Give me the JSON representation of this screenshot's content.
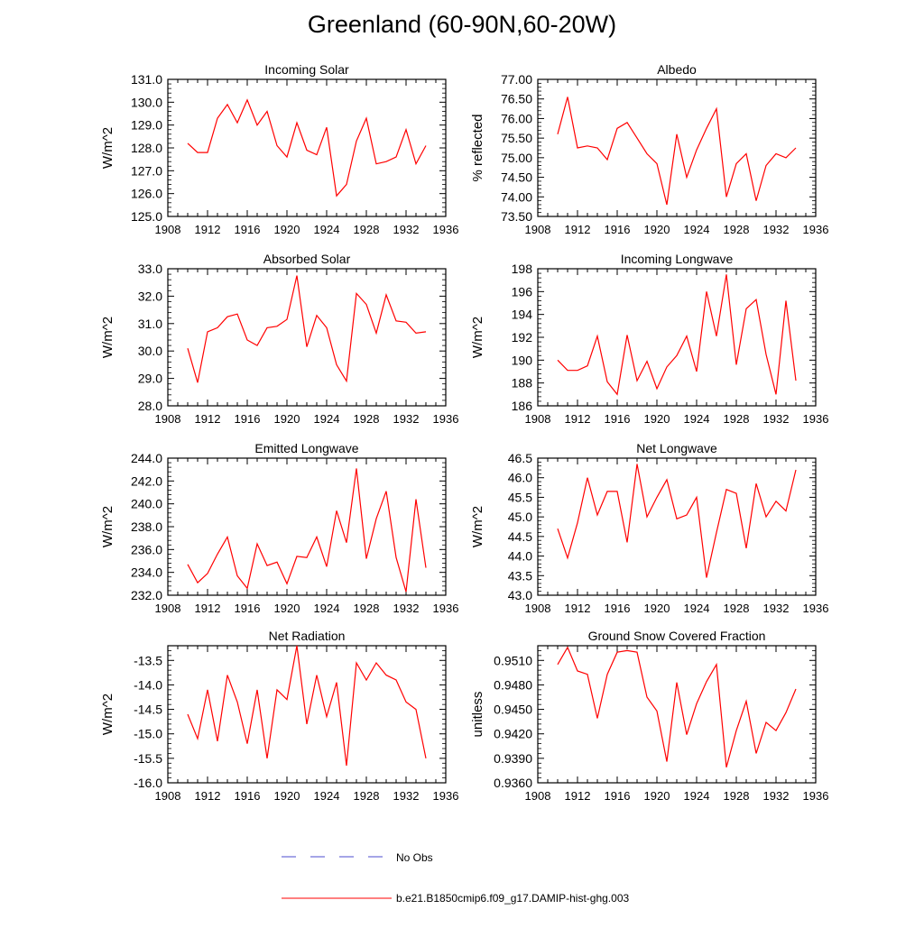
{
  "figure": {
    "title": "Greenland (60-90N,60-20W)"
  },
  "legend": {
    "obs_label": "No Obs",
    "obs_color": "#4b4bcf",
    "model_label": "b.e21.B1850cmip6.f09_g17.DAMIP-hist-ghg.003",
    "model_color": "#ff0000"
  },
  "chart_data": [
    {
      "type": "line",
      "title": "Incoming Solar",
      "ylabel": "W/m^2",
      "xlim": [
        1908,
        1936
      ],
      "ylim": [
        125.0,
        131.0
      ],
      "xticks": [
        1908,
        1912,
        1916,
        1920,
        1924,
        1928,
        1932,
        1936
      ],
      "yticks": [
        "125.0",
        "126.0",
        "127.0",
        "128.0",
        "129.0",
        "130.0",
        "131.0"
      ],
      "x": [
        1910,
        1911,
        1912,
        1913,
        1914,
        1915,
        1916,
        1917,
        1918,
        1919,
        1920,
        1921,
        1922,
        1923,
        1924,
        1925,
        1926,
        1927,
        1928,
        1929,
        1930,
        1931,
        1932,
        1933,
        1934
      ],
      "series": [
        {
          "name": "b.e21.B1850cmip6.f09_g17.DAMIP-hist-ghg.003",
          "values": [
            128.2,
            127.8,
            127.8,
            129.3,
            129.9,
            129.1,
            130.1,
            129.0,
            129.6,
            128.1,
            127.6,
            129.1,
            127.9,
            127.7,
            128.9,
            125.9,
            126.4,
            128.3,
            129.3,
            127.3,
            127.4,
            127.6,
            128.8,
            127.3,
            128.1
          ]
        }
      ]
    },
    {
      "type": "line",
      "title": "Albedo",
      "ylabel": "% reflected",
      "xlim": [
        1908,
        1936
      ],
      "ylim": [
        73.5,
        77.0
      ],
      "xticks": [
        1908,
        1912,
        1916,
        1920,
        1924,
        1928,
        1932,
        1936
      ],
      "yticks": [
        "73.50",
        "74.00",
        "74.50",
        "75.00",
        "75.50",
        "76.00",
        "76.50",
        "77.00"
      ],
      "x": [
        1910,
        1911,
        1912,
        1913,
        1914,
        1915,
        1916,
        1917,
        1918,
        1919,
        1920,
        1921,
        1922,
        1923,
        1924,
        1925,
        1926,
        1927,
        1928,
        1929,
        1930,
        1931,
        1932,
        1933,
        1934
      ],
      "series": [
        {
          "name": "b.e21.B1850cmip6.f09_g17.DAMIP-hist-ghg.003",
          "values": [
            75.6,
            76.55,
            75.25,
            75.3,
            75.25,
            74.95,
            75.75,
            75.9,
            75.5,
            75.1,
            74.85,
            73.8,
            75.6,
            74.5,
            75.2,
            75.75,
            76.25,
            74.0,
            74.85,
            75.1,
            73.9,
            74.8,
            75.1,
            75.0,
            75.25
          ]
        }
      ]
    },
    {
      "type": "line",
      "title": "Absorbed Solar",
      "ylabel": "W/m^2",
      "xlim": [
        1908,
        1936
      ],
      "ylim": [
        28.0,
        33.0
      ],
      "xticks": [
        1908,
        1912,
        1916,
        1920,
        1924,
        1928,
        1932,
        1936
      ],
      "yticks": [
        "28.0",
        "29.0",
        "30.0",
        "31.0",
        "32.0",
        "33.0"
      ],
      "x": [
        1910,
        1911,
        1912,
        1913,
        1914,
        1915,
        1916,
        1917,
        1918,
        1919,
        1920,
        1921,
        1922,
        1923,
        1924,
        1925,
        1926,
        1927,
        1928,
        1929,
        1930,
        1931,
        1932,
        1933,
        1934
      ],
      "series": [
        {
          "name": "b.e21.B1850cmip6.f09_g17.DAMIP-hist-ghg.003",
          "values": [
            30.1,
            28.85,
            30.7,
            30.85,
            31.25,
            31.35,
            30.4,
            30.2,
            30.85,
            30.9,
            31.15,
            32.75,
            30.15,
            31.3,
            30.85,
            29.5,
            28.9,
            32.1,
            31.7,
            30.65,
            32.05,
            31.1,
            31.05,
            30.65,
            30.7
          ]
        }
      ]
    },
    {
      "type": "line",
      "title": "Incoming Longwave",
      "ylabel": "W/m^2",
      "xlim": [
        1908,
        1936
      ],
      "ylim": [
        186,
        198
      ],
      "xticks": [
        1908,
        1912,
        1916,
        1920,
        1924,
        1928,
        1932,
        1936
      ],
      "yticks": [
        "186",
        "188",
        "190",
        "192",
        "194",
        "196",
        "198"
      ],
      "x": [
        1910,
        1911,
        1912,
        1913,
        1914,
        1915,
        1916,
        1917,
        1918,
        1919,
        1920,
        1921,
        1922,
        1923,
        1924,
        1925,
        1926,
        1927,
        1928,
        1929,
        1930,
        1931,
        1932,
        1933,
        1934
      ],
      "series": [
        {
          "name": "b.e21.B1850cmip6.f09_g17.DAMIP-hist-ghg.003",
          "values": [
            190.0,
            189.1,
            189.1,
            189.5,
            192.1,
            188.1,
            187.0,
            192.2,
            188.2,
            189.9,
            187.5,
            189.4,
            190.4,
            192.1,
            189.0,
            196.0,
            192.1,
            197.5,
            189.6,
            194.5,
            195.3,
            190.5,
            187.0,
            195.2,
            188.2
          ]
        }
      ]
    },
    {
      "type": "line",
      "title": "Emitted Longwave",
      "ylabel": "W/m^2",
      "xlim": [
        1908,
        1936
      ],
      "ylim": [
        232.0,
        244.0
      ],
      "xticks": [
        1908,
        1912,
        1916,
        1920,
        1924,
        1928,
        1932,
        1936
      ],
      "yticks": [
        "232.0",
        "234.0",
        "236.0",
        "238.0",
        "240.0",
        "242.0",
        "244.0"
      ],
      "x": [
        1910,
        1911,
        1912,
        1913,
        1914,
        1915,
        1916,
        1917,
        1918,
        1919,
        1920,
        1921,
        1922,
        1923,
        1924,
        1925,
        1926,
        1927,
        1928,
        1929,
        1930,
        1931,
        1932,
        1933,
        1934
      ],
      "series": [
        {
          "name": "b.e21.B1850cmip6.f09_g17.DAMIP-hist-ghg.003",
          "values": [
            234.7,
            233.1,
            233.9,
            235.6,
            237.1,
            233.7,
            232.6,
            236.5,
            234.6,
            234.9,
            233.0,
            235.4,
            235.3,
            237.1,
            234.5,
            239.4,
            236.6,
            243.1,
            235.2,
            238.7,
            241.1,
            235.3,
            232.3,
            240.4,
            234.4
          ]
        }
      ]
    },
    {
      "type": "line",
      "title": "Net Longwave",
      "ylabel": "W/m^2",
      "xlim": [
        1908,
        1936
      ],
      "ylim": [
        43.0,
        46.5
      ],
      "xticks": [
        1908,
        1912,
        1916,
        1920,
        1924,
        1928,
        1932,
        1936
      ],
      "yticks": [
        "43.0",
        "43.5",
        "44.0",
        "44.5",
        "45.0",
        "45.5",
        "46.0",
        "46.5"
      ],
      "x": [
        1910,
        1911,
        1912,
        1913,
        1914,
        1915,
        1916,
        1917,
        1918,
        1919,
        1920,
        1921,
        1922,
        1923,
        1924,
        1925,
        1926,
        1927,
        1928,
        1929,
        1930,
        1931,
        1932,
        1933,
        1934
      ],
      "series": [
        {
          "name": "b.e21.B1850cmip6.f09_g17.DAMIP-hist-ghg.003",
          "values": [
            44.7,
            43.95,
            44.85,
            46.0,
            45.05,
            45.65,
            45.65,
            44.35,
            46.35,
            45.0,
            45.5,
            45.95,
            44.95,
            45.05,
            45.5,
            43.45,
            44.6,
            45.7,
            45.6,
            44.2,
            45.85,
            45.0,
            45.4,
            45.15,
            46.2
          ]
        }
      ]
    },
    {
      "type": "line",
      "title": "Net Radiation",
      "ylabel": "W/m^2",
      "xlim": [
        1908,
        1936
      ],
      "ylim": [
        -16.0,
        -13.2
      ],
      "xticks": [
        1908,
        1912,
        1916,
        1920,
        1924,
        1928,
        1932,
        1936
      ],
      "yticks": [
        "-16.0",
        "-15.5",
        "-15.0",
        "-14.5",
        "-14.0",
        "-13.5"
      ],
      "ytick_values": [
        -16.0,
        -15.5,
        -15.0,
        -14.5,
        -14.0,
        -13.5
      ],
      "x": [
        1910,
        1911,
        1912,
        1913,
        1914,
        1915,
        1916,
        1917,
        1918,
        1919,
        1920,
        1921,
        1922,
        1923,
        1924,
        1925,
        1926,
        1927,
        1928,
        1929,
        1930,
        1931,
        1932,
        1933,
        1934
      ],
      "series": [
        {
          "name": "b.e21.B1850cmip6.f09_g17.DAMIP-hist-ghg.003",
          "values": [
            -14.6,
            -15.1,
            -14.1,
            -15.15,
            -13.8,
            -14.35,
            -15.2,
            -14.1,
            -15.5,
            -14.1,
            -14.3,
            -13.2,
            -14.8,
            -13.8,
            -14.65,
            -13.95,
            -15.65,
            -13.55,
            -13.9,
            -13.55,
            -13.8,
            -13.9,
            -14.35,
            -14.5,
            -15.5
          ]
        }
      ]
    },
    {
      "type": "line",
      "title": "Ground Snow Covered Fraction",
      "ylabel": "unitless",
      "xlim": [
        1908,
        1936
      ],
      "ylim": [
        0.936,
        0.9528
      ],
      "xticks": [
        1908,
        1912,
        1916,
        1920,
        1924,
        1928,
        1932,
        1936
      ],
      "yticks": [
        "0.9360",
        "0.9390",
        "0.9420",
        "0.9450",
        "0.9480",
        "0.9510"
      ],
      "ytick_values": [
        0.936,
        0.939,
        0.942,
        0.945,
        0.948,
        0.951
      ],
      "x": [
        1910,
        1911,
        1912,
        1913,
        1914,
        1915,
        1916,
        1917,
        1918,
        1919,
        1920,
        1921,
        1922,
        1923,
        1924,
        1925,
        1926,
        1927,
        1928,
        1929,
        1930,
        1931,
        1932,
        1933,
        1934
      ],
      "series": [
        {
          "name": "b.e21.B1850cmip6.f09_g17.DAMIP-hist-ghg.003",
          "values": [
            0.9505,
            0.9526,
            0.9497,
            0.9493,
            0.9439,
            0.9493,
            0.952,
            0.9522,
            0.952,
            0.9465,
            0.9448,
            0.9386,
            0.9483,
            0.9419,
            0.9457,
            0.9484,
            0.9505,
            0.9379,
            0.9424,
            0.946,
            0.9396,
            0.9434,
            0.9424,
            0.9446,
            0.9475
          ]
        }
      ]
    }
  ]
}
